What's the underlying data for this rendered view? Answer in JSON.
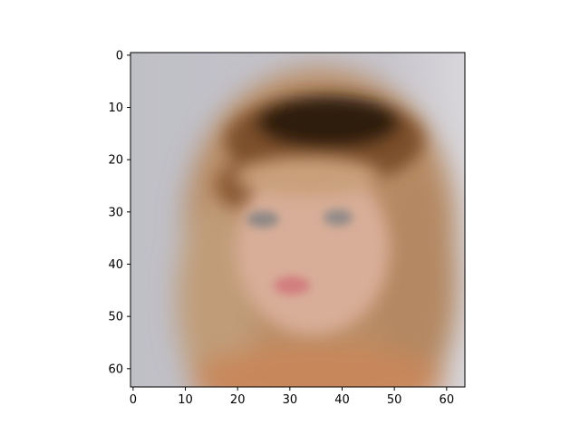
{
  "figure": {
    "xaxis": {
      "ticks": [
        {
          "value": 0,
          "label": "0"
        },
        {
          "value": 10,
          "label": "10"
        },
        {
          "value": 20,
          "label": "20"
        },
        {
          "value": 30,
          "label": "30"
        },
        {
          "value": 40,
          "label": "40"
        },
        {
          "value": 50,
          "label": "50"
        },
        {
          "value": 60,
          "label": "60"
        }
      ],
      "range": [
        -0.5,
        63.5
      ]
    },
    "yaxis": {
      "ticks": [
        {
          "value": 0,
          "label": "0"
        },
        {
          "value": 10,
          "label": "10"
        },
        {
          "value": 20,
          "label": "20"
        },
        {
          "value": 30,
          "label": "30"
        },
        {
          "value": 40,
          "label": "40"
        },
        {
          "value": 50,
          "label": "50"
        },
        {
          "value": 60,
          "label": "60"
        }
      ],
      "range": [
        -0.5,
        63.5
      ],
      "inverted": true
    },
    "image": {
      "subject": "blurred-portrait",
      "resolution": [
        64,
        64
      ],
      "colors": {
        "background": "#c3c2c9",
        "background_right": "#d8d6da",
        "hair_dark": "#3a2414",
        "hair_brown": "#8a5a32",
        "hair_blonde": "#c9a178",
        "skin": "#d9ab95",
        "eyes": "#8f8886",
        "lips": "#d07c7e",
        "shoulders": "#c8875a"
      }
    }
  }
}
